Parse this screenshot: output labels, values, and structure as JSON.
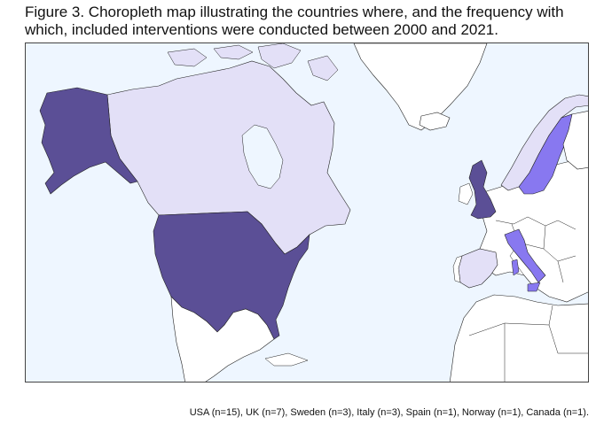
{
  "figure": {
    "title": "Figure 3. Choropleth map illustrating the countries where, and the frequency with which, included interventions were conducted between 2000 and 2021.",
    "caption": "USA (n=15), UK (n=7), Sweden (n=3), Italy (n=3), Spain (n=1), Norway (n=1), Canada (n=1)."
  },
  "map": {
    "ocean_color": "#eef6ff",
    "no_data_color": "#ffffff",
    "border_color": "#222222",
    "color_scale": {
      "high": "#5b4f96",
      "mid": "#8878f0",
      "low": "#e3e0f7"
    },
    "countries": [
      {
        "id": "usa",
        "name": "USA",
        "n": 15,
        "level": "high"
      },
      {
        "id": "uk",
        "name": "UK",
        "n": 7,
        "level": "high"
      },
      {
        "id": "sweden",
        "name": "Sweden",
        "n": 3,
        "level": "mid"
      },
      {
        "id": "italy",
        "name": "Italy",
        "n": 3,
        "level": "mid"
      },
      {
        "id": "spain",
        "name": "Spain",
        "n": 1,
        "level": "low"
      },
      {
        "id": "norway",
        "name": "Norway",
        "n": 1,
        "level": "low"
      },
      {
        "id": "canada",
        "name": "Canada",
        "n": 1,
        "level": "low"
      }
    ]
  }
}
